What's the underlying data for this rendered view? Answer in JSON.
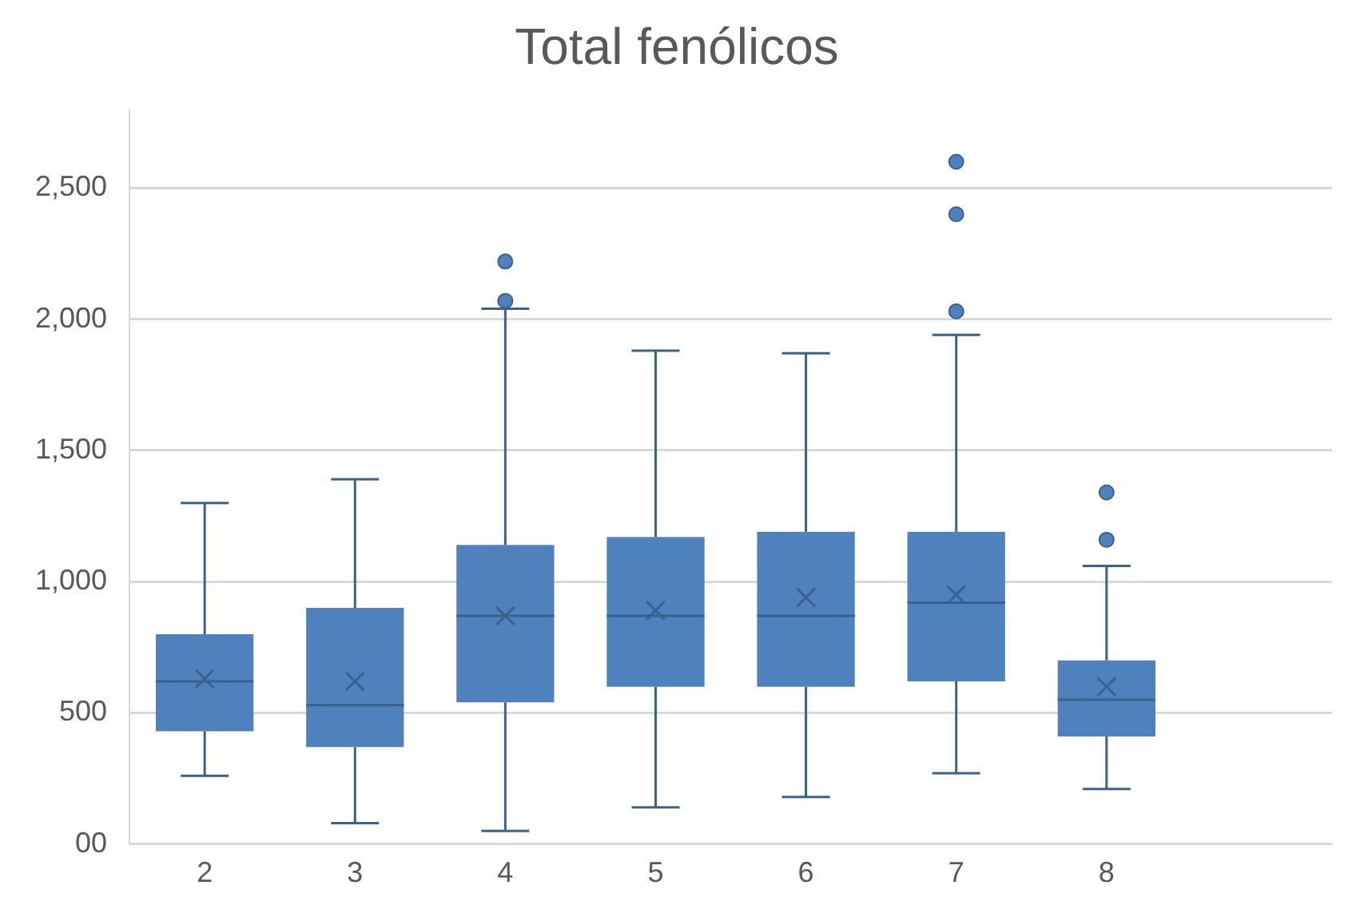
{
  "chart_data": {
    "type": "box",
    "title": "Total fenólicos",
    "categories": [
      "2",
      "3",
      "4",
      "5",
      "6",
      "7",
      "8",
      null
    ],
    "boxes": [
      {
        "low": 260,
        "q1": 430,
        "median": 620,
        "q3": 800,
        "high": 1300,
        "mean": 630
      },
      {
        "low": 80,
        "q1": 370,
        "median": 530,
        "q3": 900,
        "high": 1390,
        "mean": 620
      },
      {
        "low": 50,
        "q1": 540,
        "median": 870,
        "q3": 1140,
        "high": 2040,
        "mean": 870,
        "outliers": [
          2070,
          2220
        ]
      },
      {
        "low": 140,
        "q1": 600,
        "median": 870,
        "q3": 1170,
        "high": 1880,
        "mean": 890
      },
      {
        "low": 180,
        "q1": 600,
        "median": 870,
        "q3": 1190,
        "high": 1870,
        "mean": 940
      },
      {
        "low": 270,
        "q1": 620,
        "median": 920,
        "q3": 1190,
        "high": 1940,
        "mean": 950,
        "outliers": [
          2030,
          2400,
          2600
        ]
      },
      {
        "low": 210,
        "q1": 410,
        "median": 550,
        "q3": 700,
        "high": 1060,
        "mean": 600,
        "outliers": [
          1160,
          1340
        ]
      },
      null
    ],
    "color": "#4f81bd",
    "ylim": [
      0,
      2800
    ],
    "yticks": [
      {
        "value": 0,
        "label": "00"
      },
      {
        "value": 500,
        "label": "500"
      },
      {
        "value": 1000,
        "label": "1,000"
      },
      {
        "value": 1500,
        "label": "1,500"
      },
      {
        "value": 2000,
        "label": "2,000"
      },
      {
        "value": 2500,
        "label": "2,500"
      }
    ],
    "grid": "y",
    "legend": false
  }
}
